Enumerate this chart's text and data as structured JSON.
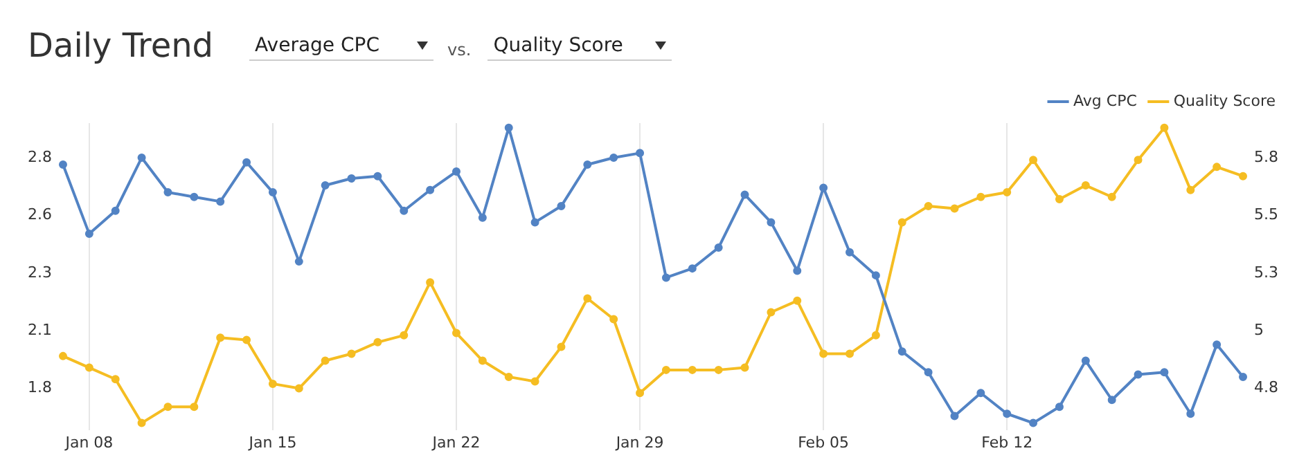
{
  "chart_data": {
    "type": "line",
    "title": "Daily Trend",
    "annotations": [
      "Average CPC",
      "vs.",
      "Quality Score"
    ],
    "categories": [
      null,
      "Jan 08",
      null,
      null,
      null,
      null,
      null,
      null,
      "Jan 15",
      null,
      null,
      null,
      null,
      null,
      null,
      "Jan 22",
      null,
      null,
      null,
      null,
      null,
      null,
      "Jan 29",
      null,
      null,
      null,
      null,
      null,
      null,
      "Feb 05",
      null,
      null,
      null,
      null,
      null,
      null,
      "Feb 12",
      null,
      null,
      null,
      null,
      null,
      null,
      null,
      null,
      null
    ],
    "series": [
      {
        "name": "Avg CPC",
        "color": "#5283c4",
        "values": [
          2.77,
          2.47,
          2.57,
          2.8,
          2.65,
          2.63,
          2.61,
          2.78,
          2.65,
          2.35,
          2.68,
          2.71,
          2.72,
          2.57,
          2.66,
          2.74,
          2.54,
          2.93,
          2.52,
          2.59,
          2.77,
          2.8,
          2.82,
          2.28,
          2.32,
          2.41,
          2.64,
          2.52,
          2.31,
          2.67,
          2.39,
          2.29,
          1.96,
          1.87,
          1.68,
          1.78,
          1.69,
          1.65,
          1.72,
          1.92,
          1.75,
          1.86,
          1.87,
          1.69,
          1.99,
          1.85
        ]
      },
      {
        "name": "Quality Score",
        "color": "#f5bd22",
        "axis": "y2",
        "values": [
          4.89,
          4.84,
          4.79,
          4.6,
          4.67,
          4.67,
          4.97,
          4.96,
          4.77,
          4.75,
          4.87,
          4.9,
          4.95,
          4.98,
          5.21,
          4.99,
          4.87,
          4.8,
          4.78,
          4.93,
          5.14,
          5.05,
          4.73,
          4.83,
          4.83,
          4.83,
          4.84,
          5.08,
          5.13,
          4.9,
          4.9,
          4.98,
          5.47,
          5.54,
          5.53,
          5.58,
          5.6,
          5.74,
          5.57,
          5.63,
          5.58,
          5.74,
          5.88,
          5.61,
          5.71,
          5.67
        ]
      }
    ],
    "ylim": [
      1.62,
      2.95
    ],
    "yticks": [
      {
        "value": 1.8,
        "label": "1.8"
      },
      {
        "value": 2.05,
        "label": "2.1"
      },
      {
        "value": 2.3,
        "label": "2.3"
      },
      {
        "value": 2.55,
        "label": "2.6"
      },
      {
        "value": 2.8,
        "label": "2.8"
      }
    ],
    "y2lim": [
      4.57,
      5.9
    ],
    "y2ticks": [
      {
        "value": 4.75,
        "label": "4.8"
      },
      {
        "value": 5,
        "label": "5"
      },
      {
        "value": 5.25,
        "label": "5.3"
      },
      {
        "value": 5.5,
        "label": "5.5"
      },
      {
        "value": 5.75,
        "label": "5.8"
      }
    ],
    "grid": "x",
    "legend": "top right",
    "marker": "circle",
    "line_style": "solid"
  }
}
